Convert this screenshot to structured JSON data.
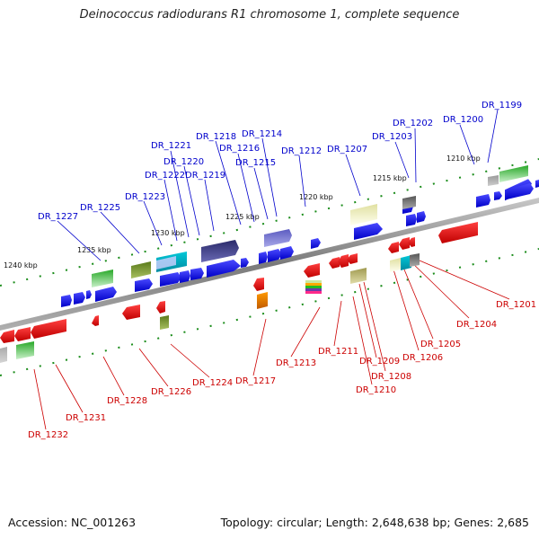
{
  "title": "Deinococcus radiodurans R1 chromosome 1, complete sequence",
  "footer": {
    "accession": "Accession: NC_001263",
    "topology": "Topology: circular; Length: 2,648,638 bp; Genes: 2,685"
  },
  "colors": {
    "top_label": "#0000cc",
    "bottom_label": "#cc0000",
    "backbone": "#8c8c8c",
    "tick": "#1a8c1a"
  },
  "kbp_ticks": [
    "1210 kbp",
    "1215 kbp",
    "1220 kbp",
    "1225 kbp",
    "1230 kbp",
    "1235 kbp",
    "1240 kbp"
  ],
  "top_labels": [
    "DR_1199",
    "DR_1200",
    "DR_1202",
    "DR_1203",
    "DR_1207",
    "DR_1212",
    "DR_1214",
    "DR_1215",
    "DR_1216",
    "DR_1218",
    "DR_1219",
    "DR_1220",
    "DR_1221",
    "DR_1222",
    "DR_1223",
    "DR_1225",
    "DR_1227"
  ],
  "bottom_labels": [
    "DR_1201",
    "DR_1204",
    "DR_1205",
    "DR_1206",
    "DR_1208",
    "DR_1209",
    "DR_1210",
    "DR_1211",
    "DR_1213",
    "DR_1217",
    "DR_1224",
    "DR_1226",
    "DR_1228",
    "DR_1231",
    "DR_1232"
  ]
}
